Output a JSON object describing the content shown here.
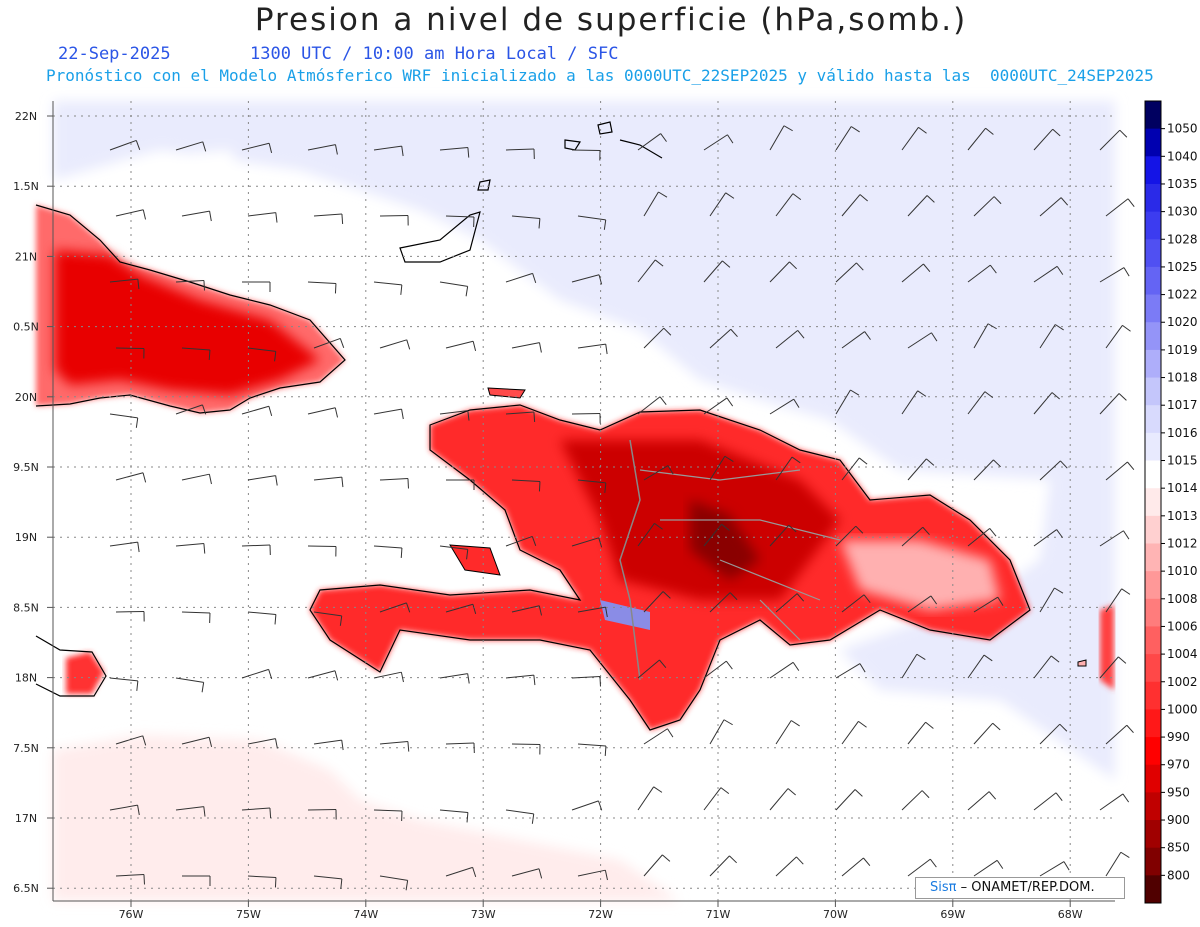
{
  "header": {
    "title": "Presion a nivel de superficie (hPa,somb.)",
    "date": "22-Sep-2025",
    "time_info": "1300 UTC / 10:00 am Hora Local / SFC",
    "forecast_info": "Pronóstico con el Modelo Atmósferico WRF inicializado a las 0000UTC_22SEP2025 y válido hasta las  0000UTC_24SEP2025"
  },
  "map": {
    "lat_labels": [
      "22N",
      "1.5N",
      "21N",
      "0.5N",
      "20N",
      "9.5N",
      "19N",
      "8.5N",
      "18N",
      "7.5N",
      "17N",
      "6.5N"
    ],
    "lon_labels": [
      "76W",
      "75W",
      "74W",
      "73W",
      "72W",
      "71W",
      "70W",
      "69W",
      "68W"
    ],
    "colors": {
      "low": "#e00000",
      "mid": "#ffd8d8",
      "high": "#e8eafc",
      "lake": "#8a8ce6"
    }
  },
  "colorbar": {
    "levels": [
      "1050",
      "1040",
      "1035",
      "1030",
      "1028",
      "1025",
      "1022",
      "1020",
      "1019",
      "1018",
      "1017",
      "1016",
      "1015",
      "1014",
      "1013",
      "1012",
      "1010",
      "1008",
      "1006",
      "1004",
      "1002",
      "1000",
      "990",
      "970",
      "950",
      "900",
      "850",
      "800"
    ],
    "colors": [
      "#000060",
      "#0000b0",
      "#1414e6",
      "#2a2ae8",
      "#3c3cf0",
      "#5050f2",
      "#6464f4",
      "#7b7bf6",
      "#9494f8",
      "#aeaefa",
      "#c4c6fb",
      "#d8dafd",
      "#e8eafe",
      "#ffffff",
      "#ffeaea",
      "#ffd0d0",
      "#ffb4b4",
      "#ff9898",
      "#ff7c7c",
      "#ff6060",
      "#ff4848",
      "#ff3030",
      "#ff1818",
      "#ff0000",
      "#e00000",
      "#c00000",
      "#a00000",
      "#800000",
      "#500000"
    ]
  },
  "credit": {
    "brand": "Sisπ",
    "org": " – ONAMET/REP.DOM."
  }
}
